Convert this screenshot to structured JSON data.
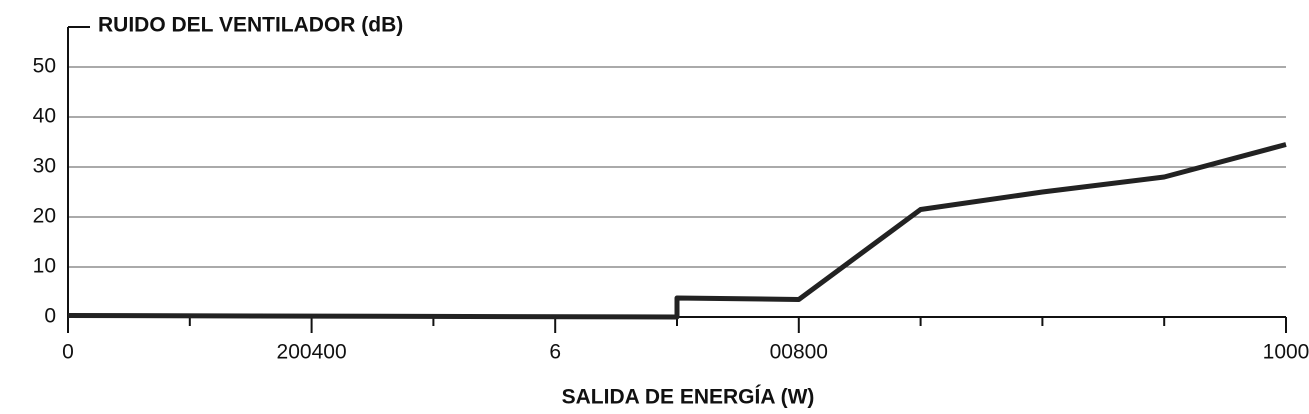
{
  "chart_data": {
    "type": "line",
    "y_axis_title": "RUIDO DEL VENTILADOR (dB)",
    "x_axis_title": "SALIDA DE ENERGÍA (W)",
    "x": [
      0,
      500,
      500,
      600,
      700,
      800,
      900,
      1000
    ],
    "series": [
      {
        "color": "#222222",
        "values": [
          0.3,
          0,
          3.8,
          3.5,
          21.5,
          25,
          28,
          34.5
        ]
      }
    ],
    "xlim": [
      0,
      1000
    ],
    "xticks": [
      0,
      {
        "value": 200,
        "label": "200400"
      },
      {
        "value": 400,
        "label": "6"
      },
      {
        "value": 600,
        "label": "00800"
      },
      1000
    ],
    "xminor_ticks": [
      100,
      300,
      500,
      700,
      800,
      900
    ],
    "ylim": [
      0,
      58
    ],
    "yticks": [
      0,
      10,
      20,
      30,
      40,
      50
    ],
    "grid": true
  }
}
